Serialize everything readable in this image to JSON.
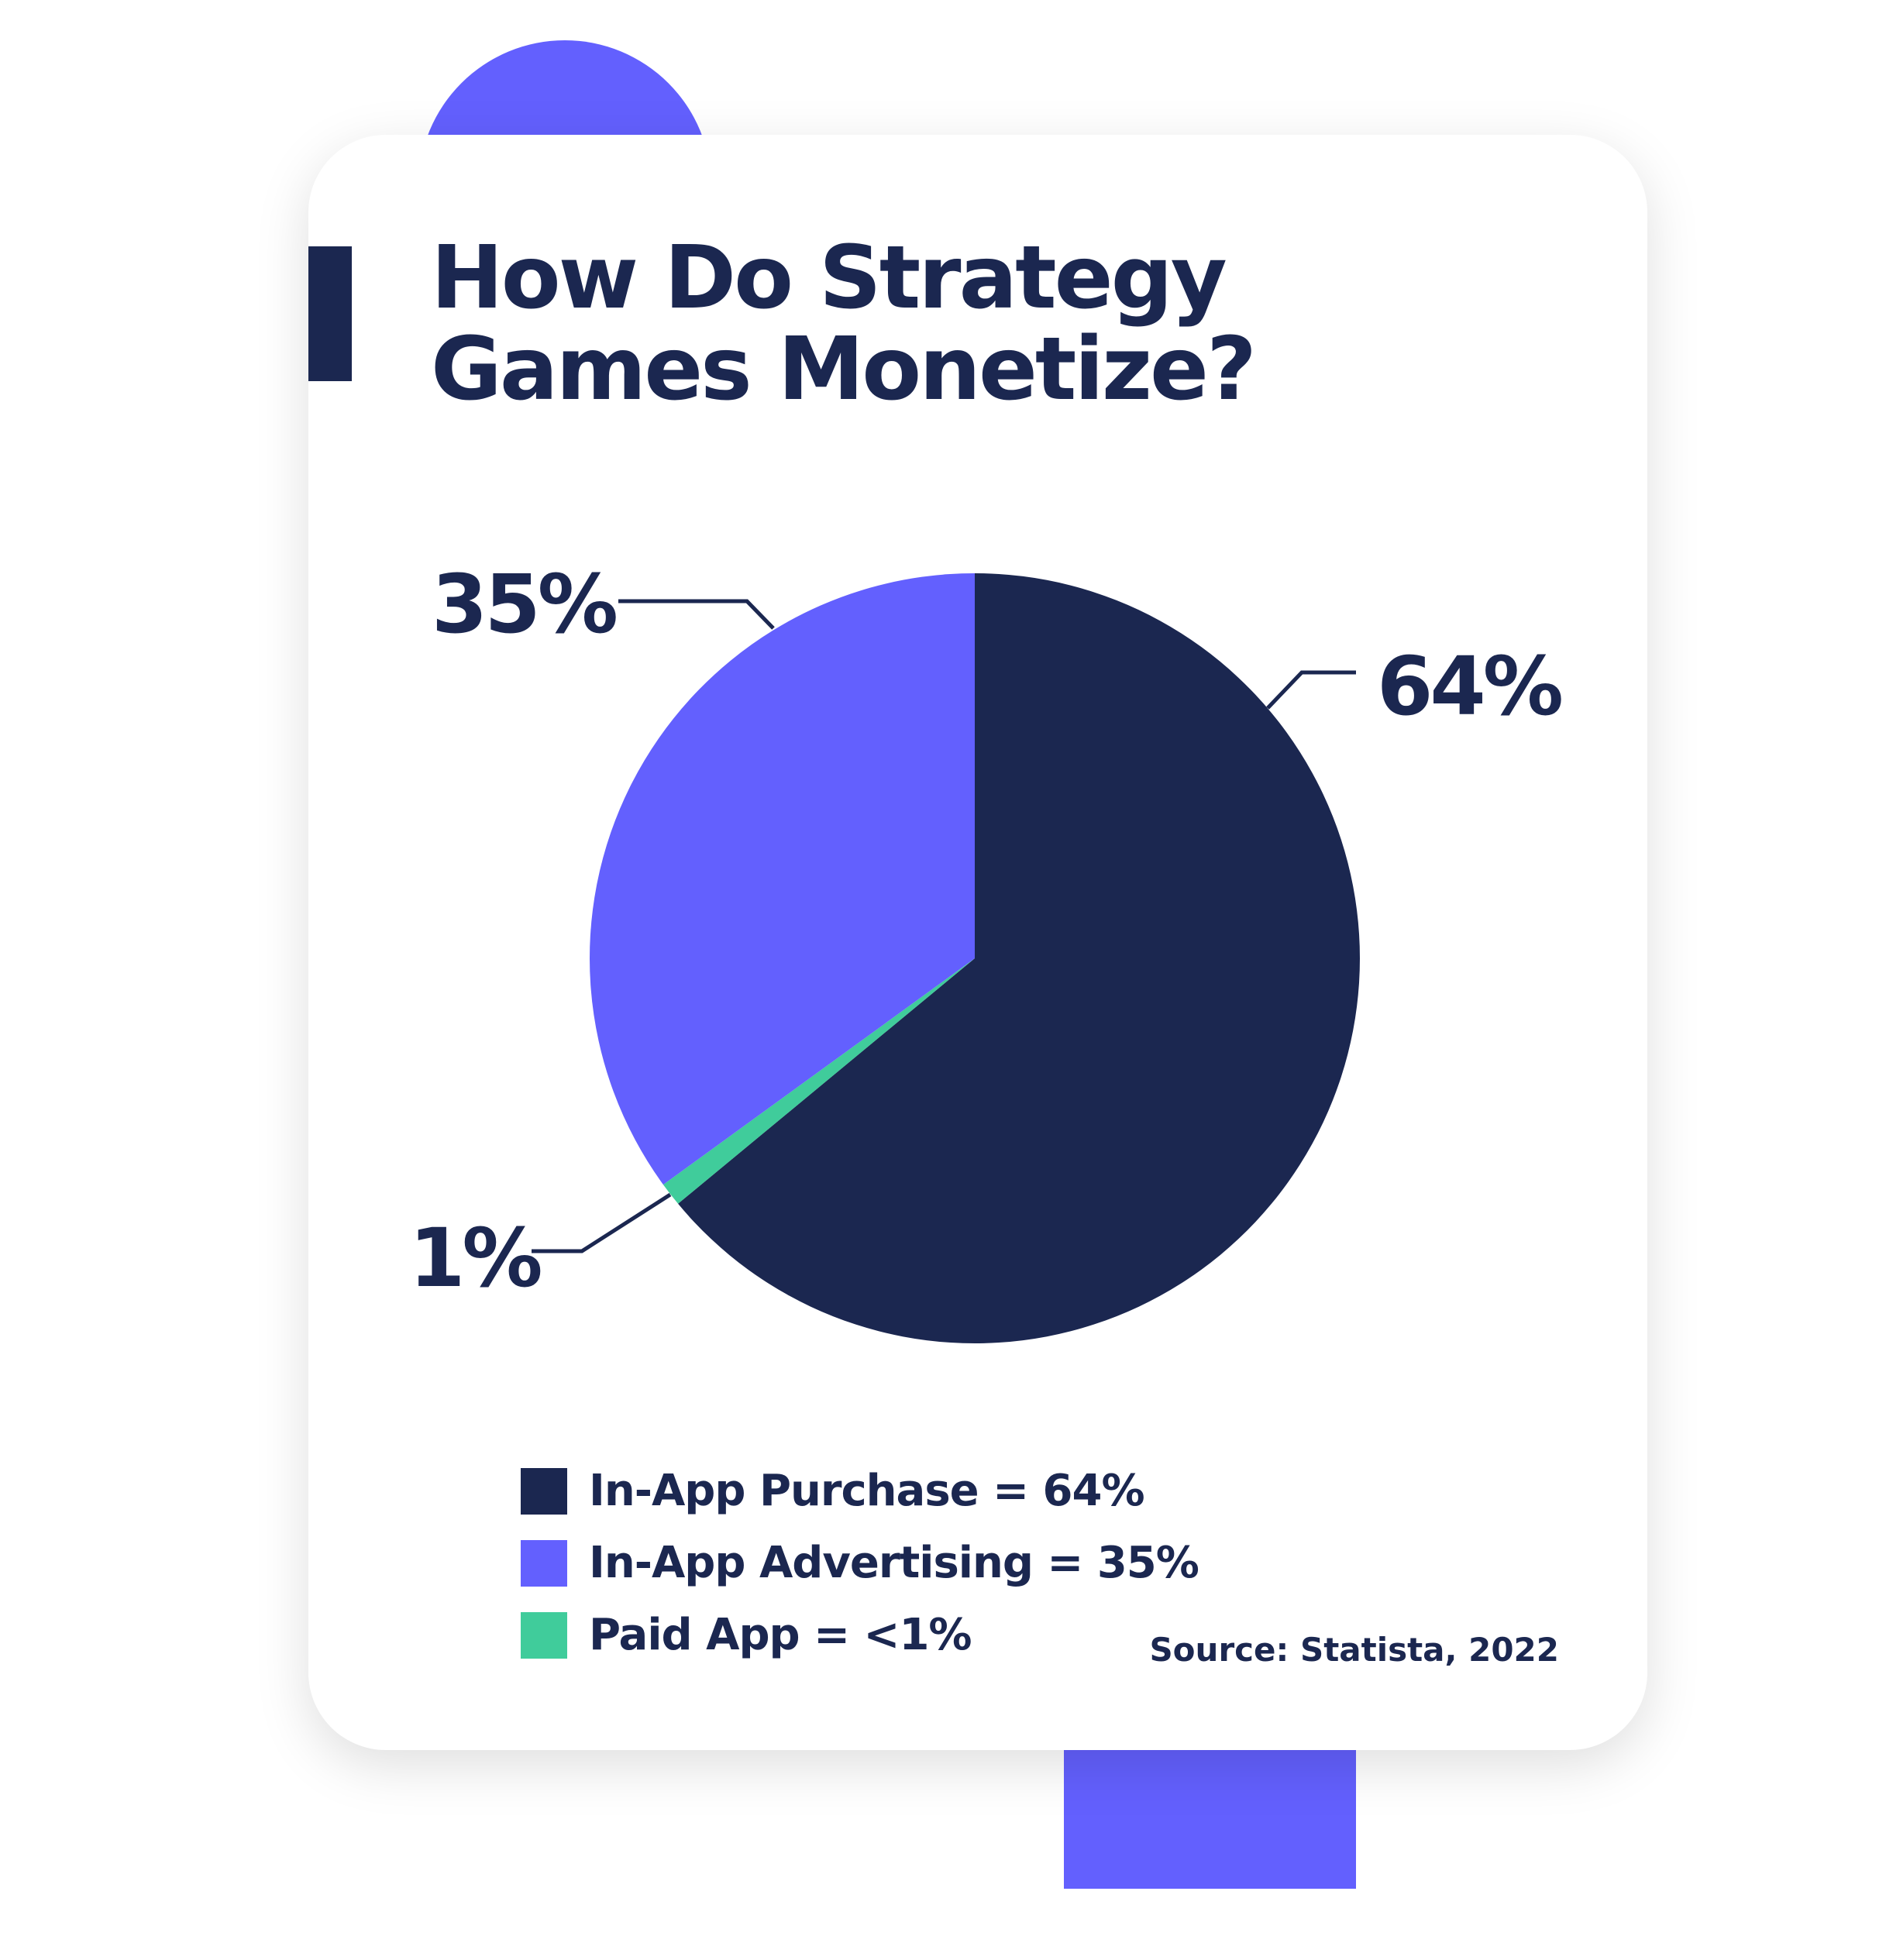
{
  "title_lines": [
    "How Do Strategy",
    "Games Monetize?"
  ],
  "source": "Source: Statista, 2022",
  "colors": {
    "navy": "#1b2750",
    "purple": "#6360fe",
    "green": "#40cc9b",
    "accent": "#6360fe"
  },
  "chart_data": {
    "type": "pie",
    "title": "How Do Strategy Games Monetize?",
    "start": "top",
    "direction": "clockwise",
    "slices": [
      {
        "name": "In-App Purchase",
        "value": 64,
        "label": "64%",
        "legend": "In-App Purchase = 64%",
        "color": "#1b2750"
      },
      {
        "name": "Paid App",
        "value": 1,
        "label": "1%",
        "legend": "Paid App = <1%",
        "color": "#40cc9b"
      },
      {
        "name": "In-App Advertising",
        "value": 35,
        "label": "35%",
        "legend": "In-App Advertising = 35%",
        "color": "#6360fe"
      }
    ],
    "legend_order": [
      0,
      2,
      1
    ],
    "legend_placement": "bottom-left"
  }
}
